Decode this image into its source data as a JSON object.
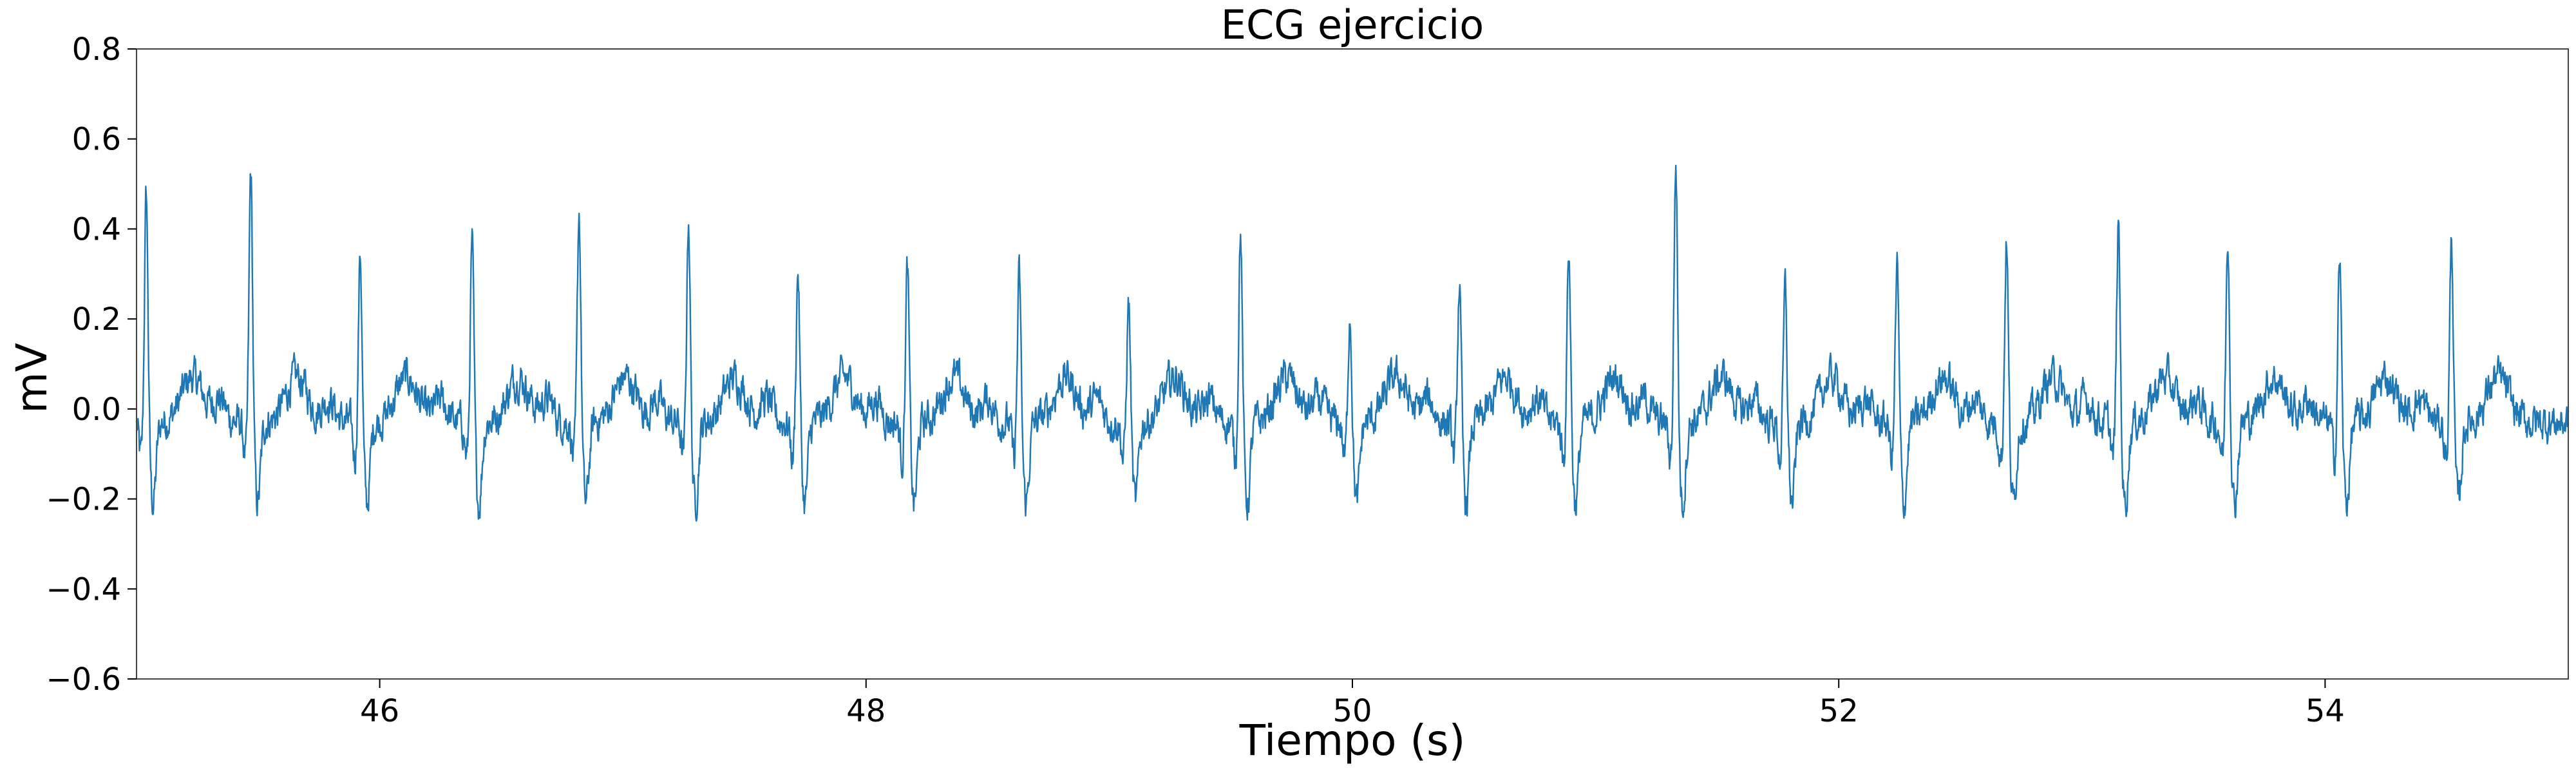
{
  "chart_data": {
    "type": "line",
    "title": "ECG ejercicio",
    "xlabel": "Tiempo (s)",
    "ylabel": "mV",
    "xlim": [
      45.0,
      55.0
    ],
    "ylim": [
      -0.6,
      0.8
    ],
    "xticks": [
      46,
      48,
      50,
      52,
      54
    ],
    "xtick_labels": [
      "46",
      "48",
      "50",
      "52",
      "54"
    ],
    "yticks": [
      -0.6,
      -0.4,
      -0.2,
      0.0,
      0.2,
      0.4,
      0.6,
      0.8
    ],
    "ytick_labels": [
      "−0.6",
      "−0.4",
      "−0.2",
      "0.0",
      "0.2",
      "0.4",
      "0.6",
      "0.8"
    ],
    "grid": false,
    "line_color": "#1f77b4",
    "series": [
      {
        "r_peaks": [
          {
            "t": 45.04,
            "v": 0.54
          },
          {
            "t": 45.47,
            "v": 0.59
          },
          {
            "t": 45.92,
            "v": 0.41
          },
          {
            "t": 46.38,
            "v": 0.43
          },
          {
            "t": 46.82,
            "v": 0.5
          },
          {
            "t": 47.27,
            "v": 0.49
          },
          {
            "t": 47.72,
            "v": 0.37
          },
          {
            "t": 48.17,
            "v": 0.38
          },
          {
            "t": 48.63,
            "v": 0.36
          },
          {
            "t": 49.08,
            "v": 0.3
          },
          {
            "t": 49.54,
            "v": 0.46
          },
          {
            "t": 49.99,
            "v": 0.28
          },
          {
            "t": 50.44,
            "v": 0.34
          },
          {
            "t": 50.89,
            "v": 0.42
          },
          {
            "t": 51.33,
            "v": 0.61
          },
          {
            "t": 51.78,
            "v": 0.33
          },
          {
            "t": 52.24,
            "v": 0.38
          },
          {
            "t": 52.69,
            "v": 0.44
          },
          {
            "t": 53.15,
            "v": 0.47
          },
          {
            "t": 53.6,
            "v": 0.45
          },
          {
            "t": 54.06,
            "v": 0.4
          },
          {
            "t": 54.52,
            "v": 0.44
          }
        ],
        "baseline_mV": 0.0,
        "noise_mV": 0.04,
        "s_trough_mV": -0.18,
        "t_wave_mV": 0.1
      }
    ]
  }
}
